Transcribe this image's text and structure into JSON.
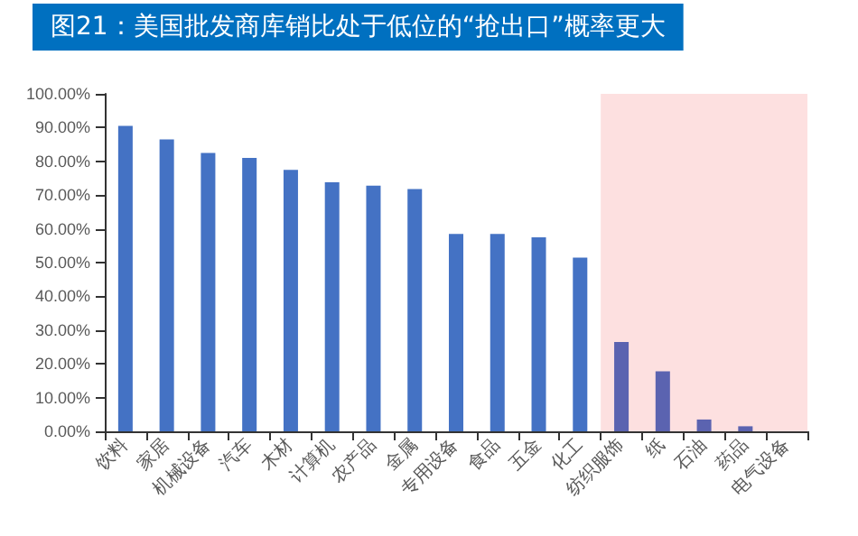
{
  "chart_data": {
    "type": "bar",
    "title": "图21：美国批发商库销比处于低位的“抢出口”概率更大",
    "categories": [
      "饮料",
      "家居",
      "机械设备",
      "汽车",
      "木材",
      "计算机",
      "农产品",
      "金属",
      "专用设备",
      "食品",
      "五金",
      "化工",
      "纺织服饰",
      "纸",
      "石油",
      "药品",
      "电气设备"
    ],
    "values": [
      90.5,
      86.5,
      82.5,
      81,
      77.5,
      73.8,
      72.8,
      71.8,
      58.5,
      58.5,
      57.5,
      51.5,
      26.5,
      17.8,
      3.5,
      1.5,
      0
    ],
    "colors": [
      "#4472c4",
      "#4472c4",
      "#4472c4",
      "#4472c4",
      "#4472c4",
      "#4472c4",
      "#4472c4",
      "#4472c4",
      "#4472c4",
      "#4472c4",
      "#4472c4",
      "#4472c4",
      "#5b63b0",
      "#5b63b0",
      "#5b63b0",
      "#5b63b0",
      "#5b63b0"
    ],
    "ylim": [
      0,
      100
    ],
    "yticks": [
      {
        "value": 0,
        "label": "0.00%"
      },
      {
        "value": 10,
        "label": "10.00%"
      },
      {
        "value": 20,
        "label": "20.00%"
      },
      {
        "value": 30,
        "label": "30.00%"
      },
      {
        "value": 40,
        "label": "40.00%"
      },
      {
        "value": 50,
        "label": "50.00%"
      },
      {
        "value": 60,
        "label": "60.00%"
      },
      {
        "value": 70,
        "label": "70.00%"
      },
      {
        "value": 80,
        "label": "80.00%"
      },
      {
        "value": 90,
        "label": "90.00%"
      },
      {
        "value": 100,
        "label": "100.00%"
      }
    ],
    "bands": [
      {
        "axis": "x",
        "from": "纺织服饰",
        "to": "电气设备",
        "color": "#fde0e0"
      }
    ],
    "grid": false
  }
}
